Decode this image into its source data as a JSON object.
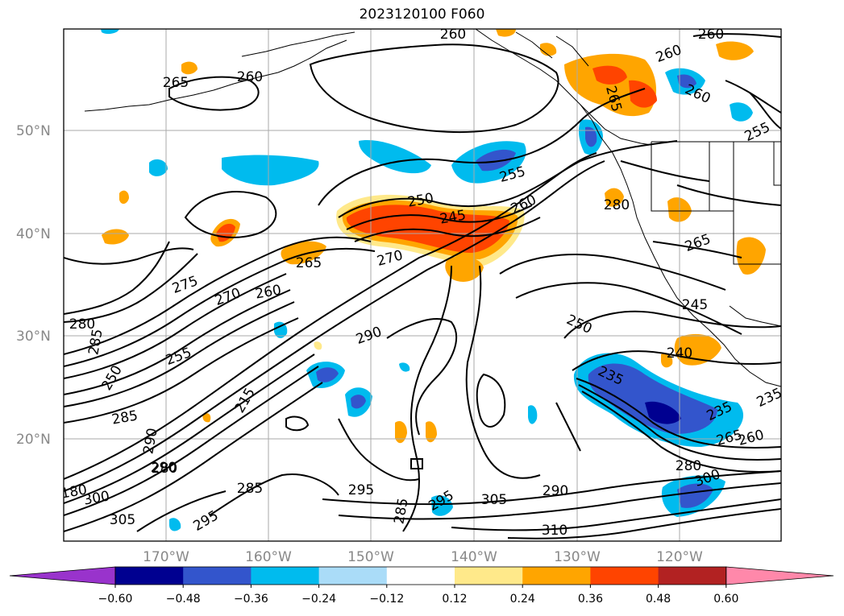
{
  "title": "2023120100 F060",
  "lat_labels": [
    "50°N",
    "40°N",
    "30°N",
    "20°N"
  ],
  "lon_labels": [
    "170°W",
    "160°W",
    "150°W",
    "140°W",
    "130°W",
    "120°W"
  ],
  "contour_labels": [
    "260",
    "260",
    "260",
    "265",
    "260",
    "260",
    "255",
    "255",
    "250",
    "245",
    "260",
    "280",
    "265",
    "270",
    "265",
    "275",
    "270",
    "260",
    "245",
    "280",
    "285",
    "250",
    "255",
    "290",
    "250",
    "235",
    "240",
    "285",
    "215",
    "235",
    "235",
    "260",
    "290",
    "280",
    "290",
    "280",
    "285",
    "300",
    "295",
    "295",
    "305",
    "290",
    "300",
    "305",
    "295",
    "310",
    "285",
    "180",
    "265",
    "265"
  ],
  "colorbar": {
    "ticks": [
      "−0.60",
      "−0.48",
      "−0.36",
      "−0.24",
      "−0.12",
      "0.12",
      "0.24",
      "0.36",
      "0.48",
      "0.60"
    ],
    "colors": [
      "#9933cc",
      "#000090",
      "#3355cc",
      "#00bbee",
      "#aadcf8",
      "#ffffff",
      "#ffe98a",
      "#ffa500",
      "#ff4400",
      "#b22222",
      "#ff88aa"
    ]
  }
}
